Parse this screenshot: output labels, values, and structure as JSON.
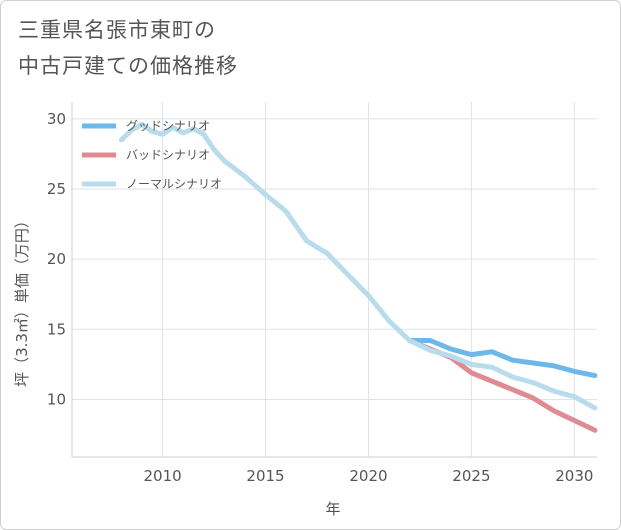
{
  "title": {
    "line1": "三重県名張市東町の",
    "line2": "中古戸建ての価格推移"
  },
  "chart_data": {
    "type": "line",
    "xlabel": "年",
    "ylabel": "坪（3.3㎡）単価（万円）",
    "xlim": [
      2005.6,
      2031.1
    ],
    "ylim": [
      5.9,
      31.2
    ],
    "x_ticks": [
      2010,
      2015,
      2020,
      2025,
      2030
    ],
    "y_ticks": [
      10,
      15,
      20,
      25,
      30
    ],
    "grid": true,
    "legend_position": "top-left",
    "series": [
      {
        "name": "グッドシナリオ",
        "color": "#6cb8ea",
        "x": [
          2022,
          2023,
          2024,
          2025,
          2026,
          2027,
          2028,
          2029,
          2030,
          2031
        ],
        "y": [
          14.2,
          14.2,
          13.6,
          13.2,
          13.4,
          12.8,
          12.6,
          12.4,
          12.0,
          11.7
        ]
      },
      {
        "name": "バッドシナリオ",
        "color": "#e08a94",
        "x": [
          2022,
          2023,
          2024,
          2025,
          2026,
          2027,
          2028,
          2029,
          2030,
          2031
        ],
        "y": [
          14.2,
          13.6,
          13.0,
          11.9,
          11.3,
          10.7,
          10.1,
          9.2,
          8.5,
          7.8
        ]
      },
      {
        "name": "ノーマルシナリオ",
        "color": "#b9dcec",
        "x": [
          2008,
          2008.5,
          2009,
          2009.5,
          2010,
          2010.5,
          2011,
          2011.5,
          2012,
          2012.5,
          2013,
          2014,
          2015,
          2016,
          2017,
          2018,
          2019,
          2020,
          2021,
          2022,
          2023,
          2024,
          2025,
          2026,
          2027,
          2028,
          2029,
          2030,
          2031
        ],
        "y": [
          28.5,
          29.2,
          29.6,
          29.1,
          28.9,
          29.4,
          29.0,
          29.3,
          28.9,
          27.8,
          27.0,
          25.9,
          24.6,
          23.4,
          21.3,
          20.4,
          18.9,
          17.4,
          15.6,
          14.2,
          13.5,
          13.1,
          12.5,
          12.3,
          11.6,
          11.2,
          10.6,
          10.2,
          9.4
        ]
      }
    ]
  }
}
